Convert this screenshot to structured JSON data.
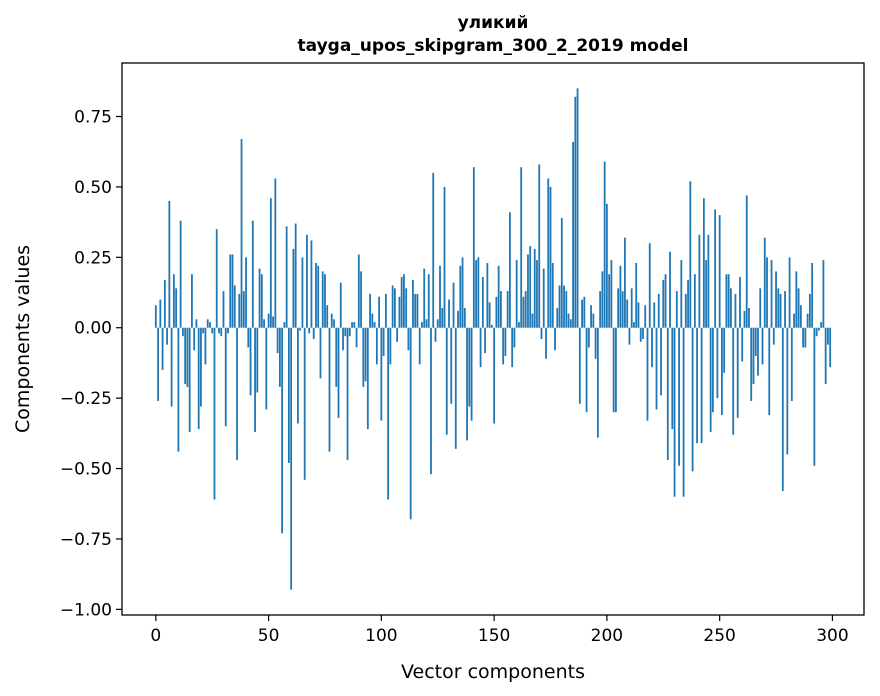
{
  "chart_data": {
    "type": "bar",
    "title": "уликий",
    "subtitle": "tayga_upos_skipgram_300_2_2019 model",
    "xlabel": "Vector components",
    "ylabel": "Components values",
    "xlim": [
      -15,
      314
    ],
    "ylim": [
      -1.02,
      0.94
    ],
    "xticks": [
      0,
      50,
      100,
      150,
      200,
      250,
      300
    ],
    "yticks": [
      -1.0,
      -0.75,
      -0.5,
      -0.25,
      0.0,
      0.25,
      0.5,
      0.75
    ],
    "ytick_labels": [
      "−1.00",
      "−0.75",
      "−0.50",
      "−0.25",
      "0.00",
      "0.25",
      "0.50",
      "0.75"
    ],
    "bar_color": "#1f77b4",
    "grid": false,
    "legend": "none",
    "x": [
      0,
      1,
      2,
      3,
      4,
      5,
      6,
      7,
      8,
      9,
      10,
      11,
      12,
      13,
      14,
      15,
      16,
      17,
      18,
      19,
      20,
      21,
      22,
      23,
      24,
      25,
      26,
      27,
      28,
      29,
      30,
      31,
      32,
      33,
      34,
      35,
      36,
      37,
      38,
      39,
      40,
      41,
      42,
      43,
      44,
      45,
      46,
      47,
      48,
      49,
      50,
      51,
      52,
      53,
      54,
      55,
      56,
      57,
      58,
      59,
      60,
      61,
      62,
      63,
      64,
      65,
      66,
      67,
      68,
      69,
      70,
      71,
      72,
      73,
      74,
      75,
      76,
      77,
      78,
      79,
      80,
      81,
      82,
      83,
      84,
      85,
      86,
      87,
      88,
      89,
      90,
      91,
      92,
      93,
      94,
      95,
      96,
      97,
      98,
      99,
      100,
      101,
      102,
      103,
      104,
      105,
      106,
      107,
      108,
      109,
      110,
      111,
      112,
      113,
      114,
      115,
      116,
      117,
      118,
      119,
      120,
      121,
      122,
      123,
      124,
      125,
      126,
      127,
      128,
      129,
      130,
      131,
      132,
      133,
      134,
      135,
      136,
      137,
      138,
      139,
      140,
      141,
      142,
      143,
      144,
      145,
      146,
      147,
      148,
      149,
      150,
      151,
      152,
      153,
      154,
      155,
      156,
      157,
      158,
      159,
      160,
      161,
      162,
      163,
      164,
      165,
      166,
      167,
      168,
      169,
      170,
      171,
      172,
      173,
      174,
      175,
      176,
      177,
      178,
      179,
      180,
      181,
      182,
      183,
      184,
      185,
      186,
      187,
      188,
      189,
      190,
      191,
      192,
      193,
      194,
      195,
      196,
      197,
      198,
      199,
      200,
      201,
      202,
      203,
      204,
      205,
      206,
      207,
      208,
      209,
      210,
      211,
      212,
      213,
      214,
      215,
      216,
      217,
      218,
      219,
      220,
      221,
      222,
      223,
      224,
      225,
      226,
      227,
      228,
      229,
      230,
      231,
      232,
      233,
      234,
      235,
      236,
      237,
      238,
      239,
      240,
      241,
      242,
      243,
      244,
      245,
      246,
      247,
      248,
      249,
      250,
      251,
      252,
      253,
      254,
      255,
      256,
      257,
      258,
      259,
      260,
      261,
      262,
      263,
      264,
      265,
      266,
      267,
      268,
      269,
      270,
      271,
      272,
      273,
      274,
      275,
      276,
      277,
      278,
      279,
      280,
      281,
      282,
      283,
      284,
      285,
      286,
      287,
      288,
      289,
      290,
      291,
      292,
      293,
      294,
      295,
      296,
      297,
      298,
      299
    ],
    "values": [
      0.08,
      -0.26,
      0.1,
      -0.15,
      0.17,
      -0.06,
      0.45,
      -0.28,
      0.19,
      0.14,
      -0.44,
      0.38,
      -0.03,
      -0.2,
      -0.21,
      -0.37,
      0.19,
      -0.08,
      0.03,
      -0.36,
      -0.28,
      -0.02,
      -0.13,
      0.03,
      0.02,
      -0.02,
      -0.61,
      0.35,
      -0.02,
      -0.03,
      0.13,
      -0.35,
      -0.02,
      0.26,
      0.26,
      0.15,
      -0.47,
      0.12,
      0.67,
      0.13,
      0.25,
      -0.07,
      -0.24,
      0.38,
      -0.37,
      -0.23,
      0.21,
      0.19,
      0.03,
      -0.29,
      0.05,
      0.46,
      0.04,
      0.53,
      -0.09,
      -0.21,
      -0.73,
      0.02,
      0.36,
      -0.48,
      -0.93,
      0.28,
      0.37,
      -0.34,
      -0.01,
      0.25,
      -0.54,
      0.33,
      -0.02,
      0.31,
      -0.04,
      0.23,
      0.22,
      -0.18,
      0.2,
      0.19,
      0.08,
      -0.44,
      0.05,
      0.03,
      -0.21,
      -0.32,
      0.16,
      -0.08,
      -0.03,
      -0.47,
      -0.03,
      0.02,
      0.02,
      -0.07,
      0.26,
      0.2,
      -0.21,
      -0.19,
      -0.36,
      0.12,
      0.05,
      0.02,
      -0.13,
      0.11,
      -0.33,
      -0.1,
      0.12,
      -0.61,
      -0.13,
      0.15,
      0.14,
      -0.05,
      0.11,
      0.18,
      0.19,
      0.14,
      -0.08,
      -0.68,
      0.17,
      0.12,
      0.12,
      -0.13,
      0.02,
      0.21,
      0.03,
      0.19,
      -0.52,
      0.55,
      -0.05,
      0.03,
      0.22,
      0.07,
      0.5,
      -0.38,
      0.1,
      -0.27,
      0.16,
      -0.43,
      0.06,
      0.22,
      0.25,
      0.07,
      -0.4,
      -0.28,
      -0.33,
      0.57,
      0.24,
      0.25,
      -0.14,
      0.18,
      -0.09,
      0.23,
      0.09,
      0.01,
      -0.34,
      0.11,
      0.22,
      0.13,
      -0.13,
      -0.1,
      0.13,
      0.41,
      -0.14,
      -0.07,
      0.24,
      0.02,
      0.57,
      0.11,
      0.13,
      0.26,
      0.29,
      0.05,
      0.28,
      0.24,
      0.58,
      -0.04,
      0.21,
      -0.11,
      0.53,
      0.5,
      0.23,
      -0.08,
      0.07,
      0.15,
      0.39,
      0.15,
      0.13,
      0.05,
      0.03,
      0.66,
      0.82,
      0.85,
      -0.27,
      0.1,
      0.11,
      -0.3,
      -0.07,
      0.08,
      0.05,
      -0.11,
      -0.39,
      0.13,
      0.2,
      0.59,
      0.44,
      0.19,
      0.24,
      -0.3,
      -0.3,
      0.14,
      0.22,
      0.13,
      0.32,
      0.1,
      -0.06,
      0.14,
      0.02,
      0.23,
      0.09,
      -0.05,
      -0.04,
      0.08,
      -0.33,
      0.3,
      -0.14,
      0.09,
      -0.29,
      0.12,
      -0.24,
      0.17,
      0.19,
      -0.47,
      0.27,
      -0.36,
      -0.6,
      0.13,
      -0.49,
      0.24,
      -0.6,
      0.12,
      0.17,
      0.52,
      -0.51,
      0.19,
      -0.41,
      0.33,
      -0.41,
      0.46,
      0.24,
      0.33,
      -0.37,
      -0.3,
      0.42,
      -0.25,
      0.4,
      -0.31,
      -0.16,
      0.19,
      0.19,
      0.14,
      -0.38,
      0.12,
      -0.32,
      0.18,
      -0.12,
      0.06,
      0.47,
      0.07,
      -0.26,
      -0.2,
      -0.1,
      -0.17,
      0.14,
      -0.13,
      0.32,
      0.25,
      -0.31,
      0.24,
      -0.06,
      0.2,
      0.14,
      0.12,
      -0.58,
      0.13,
      -0.45,
      0.25,
      -0.26,
      0.05,
      0.2,
      0.14,
      0.08,
      -0.07,
      -0.07,
      0.05,
      0.12,
      0.23,
      -0.49,
      -0.03,
      -0.01,
      0.02,
      0.24,
      -0.2,
      -0.06,
      -0.14
    ]
  }
}
